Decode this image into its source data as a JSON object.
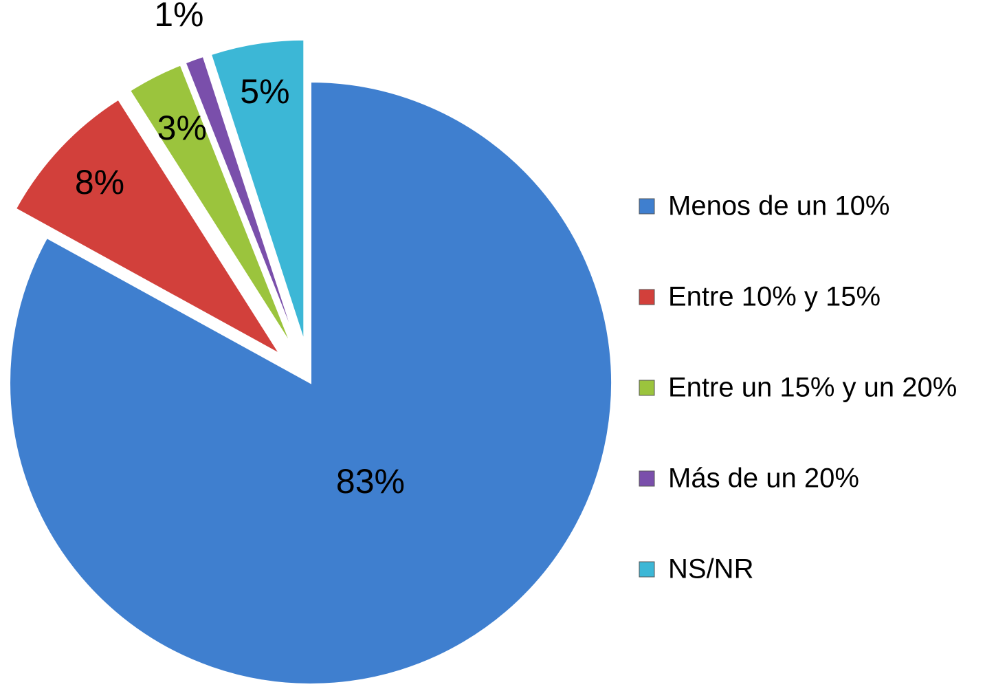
{
  "chart_data": {
    "type": "pie",
    "categories": [
      "Menos de un 10%",
      "Entre 10% y 15%",
      "Entre un 15% y un 20%",
      "Más de un 20%",
      "NS/NR"
    ],
    "values": [
      83,
      8,
      3,
      1,
      5
    ],
    "value_labels": [
      "83%",
      "8%",
      "3%",
      "1%",
      "5%"
    ],
    "colors": [
      "#3f7fcf",
      "#d2403b",
      "#9bc43d",
      "#7a4fab",
      "#3cb7d6"
    ],
    "legend": "right"
  }
}
